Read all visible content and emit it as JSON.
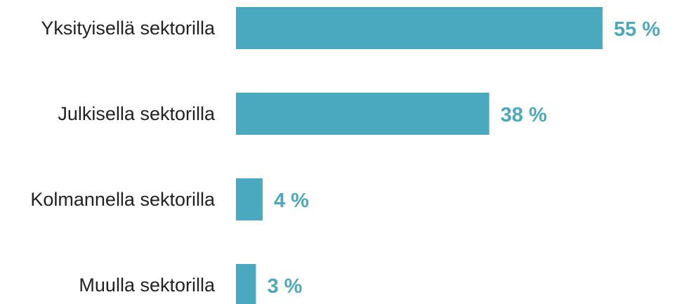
{
  "colors": {
    "bar": "#4aa8bf",
    "value_text": "#4aa8bf",
    "label_text": "#222222"
  },
  "chart_data": {
    "type": "bar",
    "orientation": "horizontal",
    "categories": [
      "Yksityisellä sektorilla",
      "Julkisella sektorilla",
      "Kolmannella sektorilla",
      "Muulla sektorilla"
    ],
    "values": [
      55,
      38,
      4,
      3
    ],
    "value_labels": [
      "55 %",
      "38 %",
      "4 %",
      "3 %"
    ],
    "unit": "%",
    "xlim": [
      0,
      55
    ],
    "grid": false,
    "legend": "none"
  }
}
